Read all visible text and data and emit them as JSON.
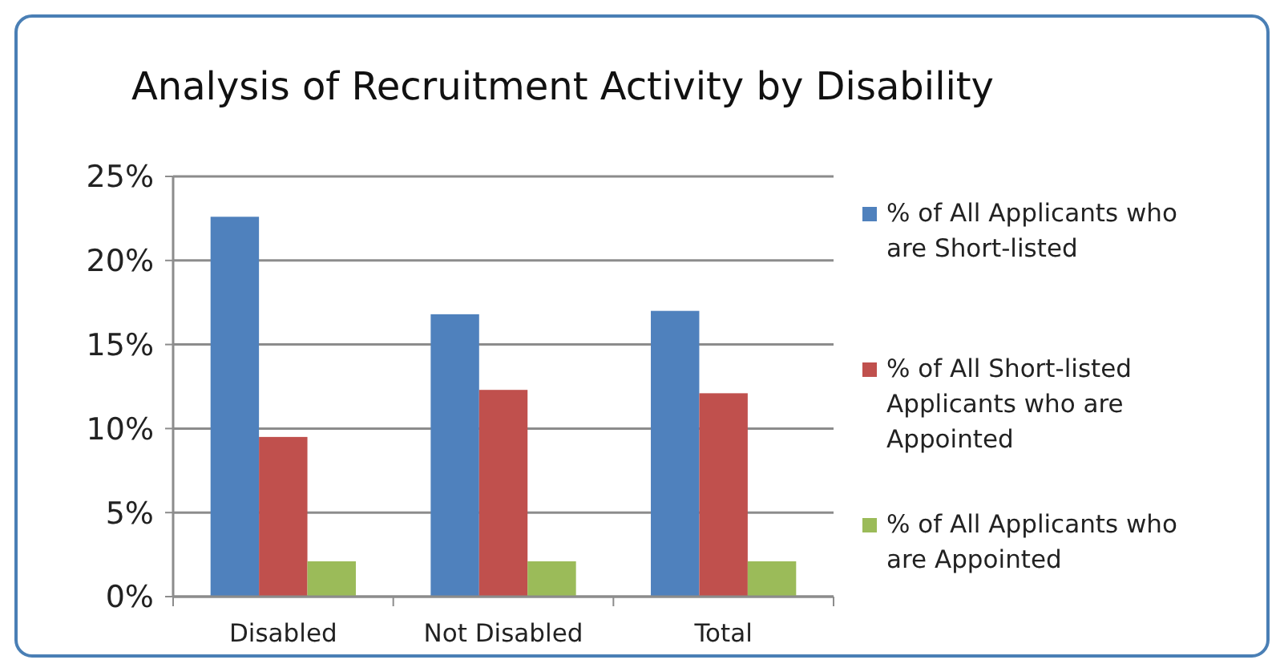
{
  "chart_data": {
    "type": "bar",
    "title": "Analysis of Recruitment Activity by Disability",
    "categories": [
      "Disabled",
      "Not Disabled",
      "Total"
    ],
    "series": [
      {
        "name": "% of All Applicants who are Short-listed",
        "color": "#4f81bd",
        "values": [
          22.6,
          16.8,
          17.0
        ]
      },
      {
        "name": "% of All Short-listed Applicants who are Appointed",
        "color": "#c0504d",
        "values": [
          9.5,
          12.3,
          12.1
        ]
      },
      {
        "name": "% of All Applicants who are Appointed",
        "color": "#9bbb59",
        "values": [
          2.1,
          2.1,
          2.1
        ]
      }
    ],
    "ylim": [
      0,
      25
    ],
    "yticks": [
      {
        "value": 0,
        "label": "0%"
      },
      {
        "value": 5,
        "label": "5%"
      },
      {
        "value": 10,
        "label": "10%"
      },
      {
        "value": 15,
        "label": "15%"
      },
      {
        "value": 20,
        "label": "20%"
      },
      {
        "value": 25,
        "label": "25%"
      }
    ],
    "grid": "y",
    "legend": "right"
  }
}
